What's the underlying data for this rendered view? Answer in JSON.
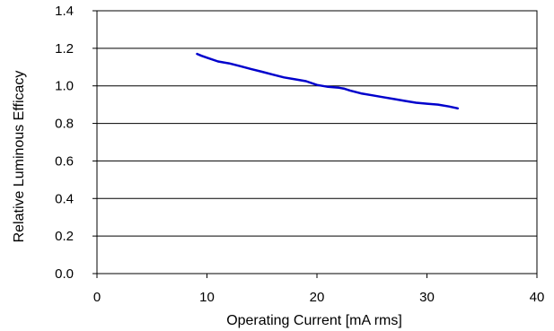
{
  "chart_data": {
    "type": "line",
    "title": "",
    "xlabel": "Operating Current [mA rms]",
    "ylabel": "Relative Luminous Efficacy",
    "xlim": [
      0,
      40
    ],
    "ylim": [
      0.0,
      1.4
    ],
    "xticks": [
      0,
      10,
      20,
      30,
      40
    ],
    "xtick_labels": [
      "0",
      "10",
      "20",
      "30",
      "40"
    ],
    "yticks": [
      0.0,
      0.2,
      0.4,
      0.6,
      0.8,
      1.0,
      1.2,
      1.4
    ],
    "ytick_labels": [
      "0.0",
      "0.2",
      "0.4",
      "0.6",
      "0.8",
      "1.0",
      "1.2",
      "1.4"
    ],
    "grid": "horizontal",
    "legend": "none",
    "line_color": "#0000cc",
    "series": [
      {
        "x": [
          9.1,
          9.5,
          10,
          11,
          12,
          13,
          14,
          15,
          16,
          17,
          18,
          19,
          20,
          21,
          22,
          22.5,
          23,
          24,
          25,
          26,
          27,
          28,
          29,
          30,
          31,
          32,
          32.8
        ],
        "values": [
          1.17,
          1.16,
          1.15,
          1.13,
          1.12,
          1.105,
          1.09,
          1.075,
          1.06,
          1.045,
          1.035,
          1.025,
          1.005,
          0.995,
          0.99,
          0.985,
          0.975,
          0.96,
          0.95,
          0.94,
          0.93,
          0.92,
          0.91,
          0.905,
          0.9,
          0.89,
          0.88
        ]
      }
    ]
  }
}
